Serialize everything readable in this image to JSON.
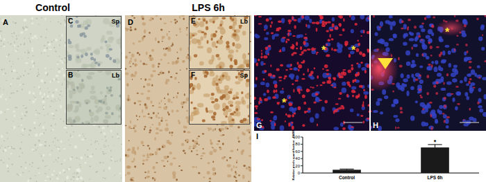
{
  "headers": [
    "Control",
    "LPS 6h"
  ],
  "panels": [
    {
      "label": "A"
    },
    {
      "label": "B",
      "tag": "Lb"
    },
    {
      "label": "C",
      "tag": "Sp"
    },
    {
      "label": "D"
    },
    {
      "label": "E",
      "tag": "Lb"
    },
    {
      "label": "F",
      "tag": "Sp"
    },
    {
      "label": "G",
      "markers": [
        "*",
        "*",
        "*"
      ]
    },
    {
      "label": "H",
      "markers": [
        "*"
      ]
    },
    {
      "label": "I"
    }
  ],
  "chart_data": {
    "type": "bar",
    "categories": [
      "Control",
      "LPS 6h"
    ],
    "values": [
      9,
      71
    ],
    "errors": [
      2,
      8
    ],
    "color": "#1a1a1a",
    "ylim": [
      0,
      100
    ],
    "yticks": [
      0,
      20,
      40,
      60,
      80,
      100
    ],
    "y_label": "Relative pixels quantification - PARP",
    "annotations": [
      {
        "text": "*",
        "category": "LPS 6h"
      }
    ]
  }
}
